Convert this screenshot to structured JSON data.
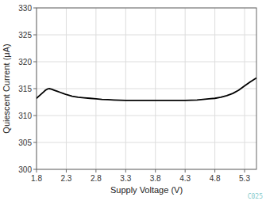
{
  "chart_data": {
    "type": "line",
    "xlabel": "Supply Voltage (V)",
    "ylabel": "Quiescent Current (μA)",
    "annotations": [
      "C025"
    ],
    "color": "#000000",
    "grid": true,
    "xlim": [
      1.8,
      5.5
    ],
    "ylim": [
      300,
      330
    ],
    "xticks": [
      1.8,
      2.3,
      2.8,
      3.3,
      3.8,
      4.3,
      4.8,
      5.3
    ],
    "yticks": [
      300,
      305,
      310,
      315,
      320,
      325,
      330
    ],
    "x": [
      1.8,
      1.83,
      1.86,
      1.89,
      1.92,
      1.95,
      1.98,
      2.01,
      2.05,
      2.1,
      2.15,
      2.2,
      2.25,
      2.3,
      2.4,
      2.5,
      2.6,
      2.7,
      2.8,
      2.9,
      3.0,
      3.1,
      3.2,
      3.3,
      3.4,
      3.5,
      3.6,
      3.7,
      3.8,
      3.9,
      4.0,
      4.1,
      4.2,
      4.3,
      4.4,
      4.5,
      4.6,
      4.7,
      4.8,
      4.9,
      5.0,
      5.1,
      5.2,
      5.3,
      5.4,
      5.5
    ],
    "values": [
      313.2,
      313.5,
      313.8,
      314.1,
      314.4,
      314.7,
      314.9,
      315.0,
      314.9,
      314.7,
      314.5,
      314.3,
      314.1,
      313.9,
      313.6,
      313.4,
      313.3,
      313.2,
      313.1,
      313.0,
      312.95,
      312.9,
      312.85,
      312.8,
      312.8,
      312.8,
      312.8,
      312.8,
      312.8,
      312.8,
      312.8,
      312.8,
      312.8,
      312.8,
      312.85,
      312.9,
      313.0,
      313.1,
      313.2,
      313.4,
      313.7,
      314.1,
      314.7,
      315.5,
      316.3,
      317.0
    ]
  }
}
